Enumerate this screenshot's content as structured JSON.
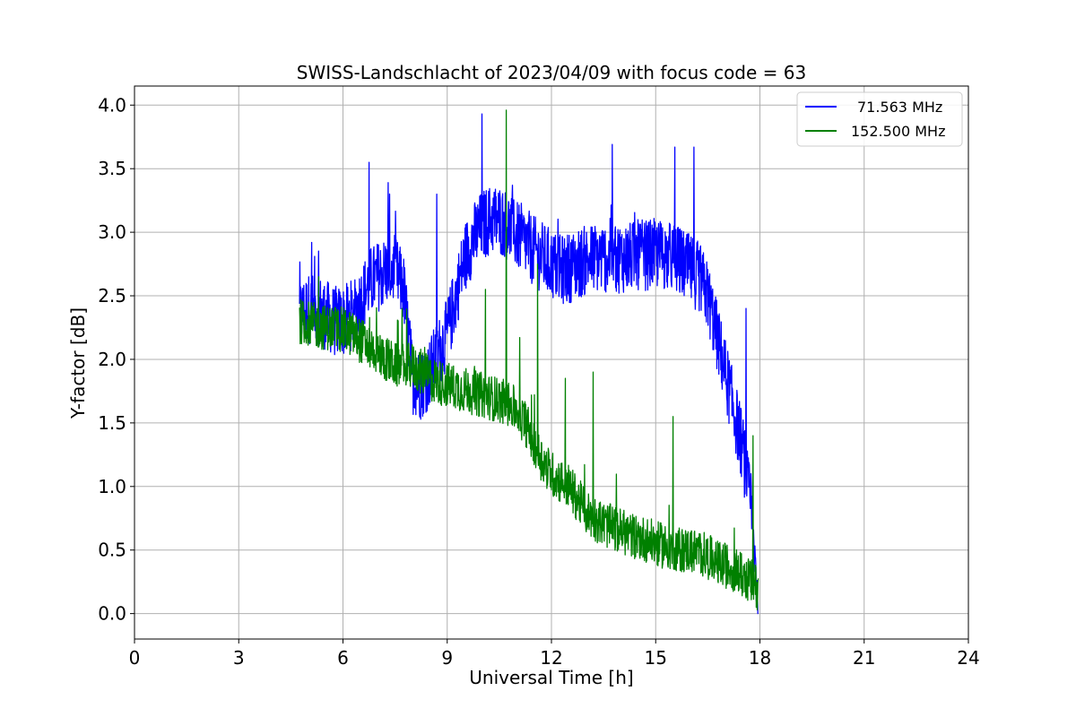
{
  "chart_data": {
    "type": "line",
    "title": "SWISS-Landschlacht of 2023/04/09 with focus code = 63",
    "xlabel": "Universal Time [h]",
    "ylabel": "Y-factor [dB]",
    "xlim": [
      0,
      24
    ],
    "ylim": [
      -0.2,
      4.15
    ],
    "xticks": [
      0,
      3,
      6,
      9,
      12,
      15,
      18,
      21,
      24
    ],
    "xtick_labels": [
      "0",
      "3",
      "6",
      "9",
      "12",
      "15",
      "18",
      "21",
      "24"
    ],
    "yticks": [
      0.0,
      0.5,
      1.0,
      1.5,
      2.0,
      2.5,
      3.0,
      3.5,
      4.0
    ],
    "ytick_labels": [
      "0.0",
      "0.5",
      "1.0",
      "1.5",
      "2.0",
      "2.5",
      "3.0",
      "3.5",
      "4.0"
    ],
    "grid": true,
    "legend_position": "top-right",
    "series": [
      {
        "name": "71.563 MHz",
        "color": "#0000ff",
        "x": [
          4.75,
          5.0,
          5.25,
          5.5,
          5.75,
          6.0,
          6.25,
          6.5,
          6.75,
          7.0,
          7.25,
          7.5,
          7.75,
          8.0,
          8.25,
          8.5,
          8.75,
          9.0,
          9.25,
          9.5,
          9.75,
          10.0,
          10.25,
          10.5,
          10.75,
          11.0,
          11.25,
          11.5,
          11.75,
          12.0,
          12.25,
          12.5,
          12.75,
          13.0,
          13.25,
          13.5,
          13.75,
          14.0,
          14.25,
          14.5,
          14.75,
          15.0,
          15.25,
          15.5,
          15.75,
          16.0,
          16.25,
          16.5,
          16.75,
          17.0,
          17.25,
          17.5,
          17.75,
          17.95
        ],
        "y": [
          2.35,
          2.4,
          2.4,
          2.35,
          2.3,
          2.3,
          2.35,
          2.45,
          2.6,
          2.65,
          2.7,
          2.7,
          2.55,
          1.85,
          1.8,
          1.9,
          2.05,
          2.2,
          2.5,
          2.8,
          2.95,
          3.05,
          3.1,
          3.1,
          3.05,
          2.98,
          2.92,
          2.85,
          2.8,
          2.75,
          2.7,
          2.72,
          2.75,
          2.78,
          2.8,
          2.8,
          2.8,
          2.8,
          2.8,
          2.82,
          2.82,
          2.83,
          2.82,
          2.8,
          2.75,
          2.7,
          2.65,
          2.5,
          2.2,
          1.9,
          1.6,
          1.3,
          0.8,
          0.1
        ],
        "spikes": [
          [
            5.1,
            2.92
          ],
          [
            6.75,
            3.55
          ],
          [
            7.3,
            3.39
          ],
          [
            8.7,
            3.3
          ],
          [
            10.0,
            3.93
          ],
          [
            13.75,
            3.69
          ],
          [
            15.55,
            3.67
          ],
          [
            16.1,
            3.67
          ],
          [
            17.6,
            2.4
          ]
        ]
      },
      {
        "name": "152.500 MHz",
        "color": "#008000",
        "x": [
          4.75,
          5.0,
          5.25,
          5.5,
          5.75,
          6.0,
          6.25,
          6.5,
          6.75,
          7.0,
          7.25,
          7.5,
          7.75,
          8.0,
          8.25,
          8.5,
          8.75,
          9.0,
          9.25,
          9.5,
          9.75,
          10.0,
          10.25,
          10.5,
          10.75,
          11.0,
          11.25,
          11.5,
          11.75,
          12.0,
          12.25,
          12.5,
          12.75,
          13.0,
          13.25,
          13.5,
          13.75,
          14.0,
          14.25,
          14.5,
          14.75,
          15.0,
          15.25,
          15.5,
          15.75,
          16.0,
          16.25,
          16.5,
          16.75,
          17.0,
          17.25,
          17.5,
          17.75,
          17.95
        ],
        "y": [
          2.3,
          2.28,
          2.26,
          2.25,
          2.25,
          2.23,
          2.2,
          2.15,
          2.1,
          2.05,
          2.0,
          1.95,
          1.95,
          1.95,
          1.9,
          1.85,
          1.82,
          1.8,
          1.78,
          1.76,
          1.74,
          1.72,
          1.7,
          1.68,
          1.65,
          1.6,
          1.5,
          1.35,
          1.2,
          1.1,
          1.05,
          1.0,
          0.9,
          0.8,
          0.75,
          0.7,
          0.68,
          0.65,
          0.62,
          0.6,
          0.58,
          0.55,
          0.53,
          0.52,
          0.5,
          0.5,
          0.48,
          0.45,
          0.4,
          0.38,
          0.35,
          0.3,
          0.25,
          0.2
        ],
        "spikes": [
          [
            5.3,
            2.65
          ],
          [
            7.7,
            2.4
          ],
          [
            10.1,
            2.55
          ],
          [
            10.7,
            3.96
          ],
          [
            11.6,
            2.75
          ],
          [
            12.4,
            1.85
          ],
          [
            13.2,
            1.9
          ],
          [
            15.5,
            1.55
          ],
          [
            17.8,
            1.4
          ]
        ]
      }
    ]
  }
}
